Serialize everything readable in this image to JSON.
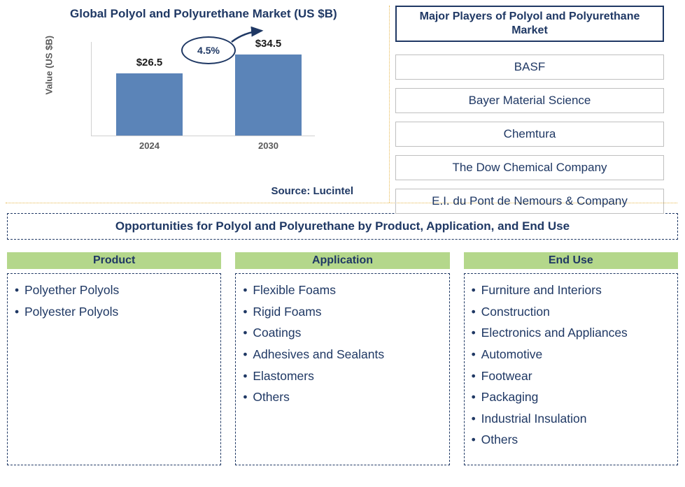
{
  "chart": {
    "title": "Global Polyol and Polyurethane Market (US $B)",
    "y_axis_label": "Value (US $B)",
    "type": "bar",
    "categories": [
      "2024",
      "2030"
    ],
    "values": [
      26.5,
      34.5
    ],
    "value_labels": [
      "$26.5",
      "$34.5"
    ],
    "bar_color": "#5b84b8",
    "ylim": [
      0,
      40
    ],
    "growth_label": "4.5%",
    "axis_color": "#d0d0d0",
    "source_label": "Source: Lucintel"
  },
  "players": {
    "title": "Major Players of Polyol and Polyurethane Market",
    "items": [
      "BASF",
      "Bayer Material Science",
      "Chemtura",
      "The Dow Chemical Company",
      "E.I. du Pont de Nemours & Company"
    ]
  },
  "opportunities": {
    "title": "Opportunities for Polyol and Polyurethane by Product, Application, and End Use",
    "columns": [
      {
        "heading": "Product",
        "items": [
          "Polyether Polyols",
          "Polyester Polyols"
        ]
      },
      {
        "heading": "Application",
        "items": [
          "Flexible Foams",
          "Rigid Foams",
          "Coatings",
          "Adhesives and Sealants",
          "Elastomers",
          "Others"
        ]
      },
      {
        "heading": "End Use",
        "items": [
          "Furniture and Interiors",
          "Construction",
          "Electronics and Appliances",
          "Automotive",
          "Footwear",
          "Packaging",
          "Industrial Insulation",
          "Others"
        ]
      }
    ],
    "heading_bg": "#b4d78b",
    "text_color": "#1f3864"
  }
}
